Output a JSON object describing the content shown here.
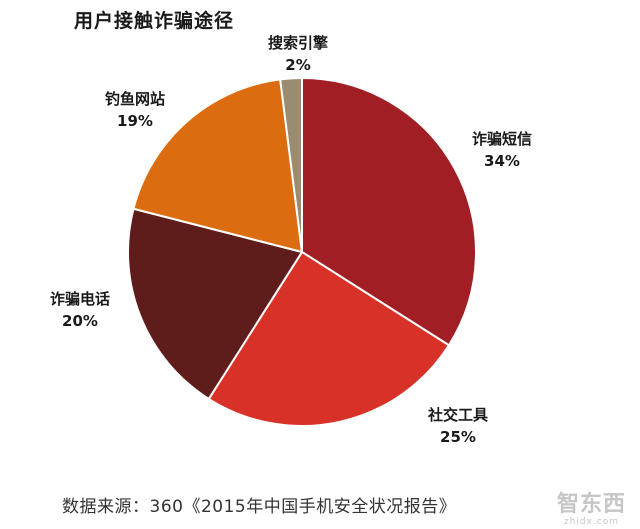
{
  "chart_data": {
    "type": "pie",
    "title": "用户接触诈骗途径",
    "slices": [
      {
        "label": "诈骗短信",
        "percent_text": "34%",
        "value": 34,
        "color": "#a11f24"
      },
      {
        "label": "社交工具",
        "percent_text": "25%",
        "value": 25,
        "color": "#d83228"
      },
      {
        "label": "诈骗电话",
        "percent_text": "20%",
        "value": 20,
        "color": "#5e1d1a"
      },
      {
        "label": "钓鱼网站",
        "percent_text": "19%",
        "value": 19,
        "color": "#dc6c10"
      },
      {
        "label": "搜索引擎",
        "percent_text": "2%",
        "value": 2,
        "color": "#9a8c70"
      }
    ],
    "start_angle_deg": 0,
    "direction": "clockwise",
    "legend": "none"
  },
  "source": "数据来源：360《2015年中国手机安全状况报告》",
  "watermark": {
    "name": "智东西",
    "sub": "zhidx.com"
  }
}
